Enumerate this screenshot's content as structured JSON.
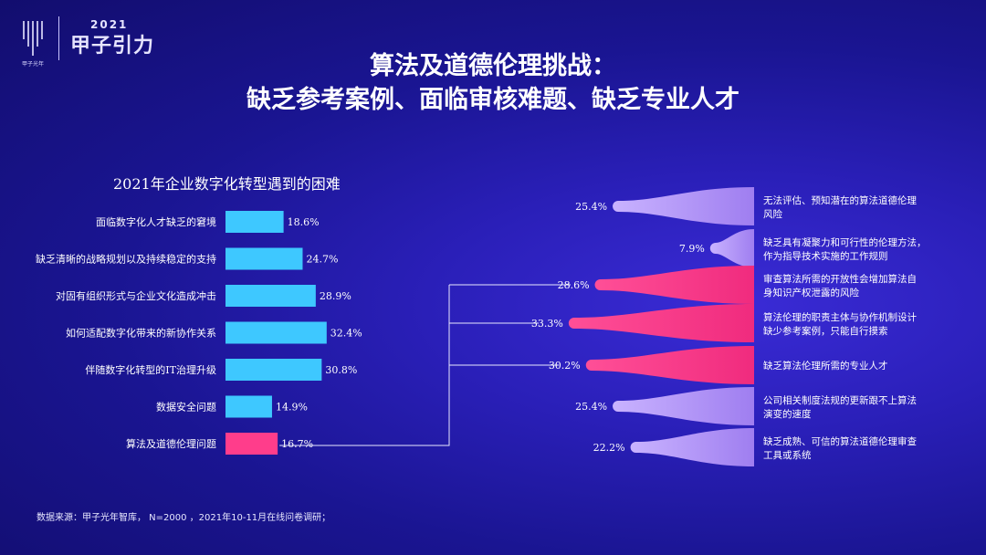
{
  "logo": {
    "year": "2021",
    "name": "甲子引力",
    "sub": "甲子光年"
  },
  "header": {
    "title_line1": "算法及道德伦理挑战：",
    "title_line2": "缺乏参考案例、面临审核难题、缺乏专业人才"
  },
  "chart_data": [
    {
      "type": "bar",
      "orientation": "horizontal",
      "title": "2021年企业数字化转型遇到的困难",
      "categories": [
        "面临数字化人才缺乏的窘境",
        "缺乏清晰的战略规划以及持续稳定的支持",
        "对固有组织形式与企业文化造成冲击",
        "如何适配数字化带来的新协作关系",
        "伴随数字化转型的IT治理升级",
        "数据安全问题",
        "算法及道德伦理问题"
      ],
      "values": [
        18.6,
        24.7,
        28.9,
        32.4,
        30.8,
        14.9,
        16.7
      ],
      "labels": [
        "18.6%",
        "24.7%",
        "28.9%",
        "32.4%",
        "30.8%",
        "14.9%",
        "16.7%"
      ],
      "highlight_index": 6,
      "colors": {
        "bar": "#3ec8ff",
        "highlight": "#ff3d8b"
      }
    },
    {
      "type": "bar",
      "orientation": "horizontal-funnel",
      "categories": [
        "无法评估、预知潜在的算法道德伦理风险",
        "缺乏具有凝聚力和可行性的伦理方法，作为指导技术实施的工作规则",
        "审查算法所需的开放性会增加算法自身知识产权泄露的风险",
        "算法伦理的职责主体与协作机制设计缺少参考案例，只能自行摸索",
        "缺乏算法伦理所需的专业人才",
        "公司相关制度法规的更新跟不上算法演变的速度",
        "缺乏成熟、可信的算法道德伦理审查工具或系统"
      ],
      "category_lines": [
        [
          "无法评估、预知潜在的算法道德伦理",
          "风险"
        ],
        [
          "缺乏具有凝聚力和可行性的伦理方法，",
          "作为指导技术实施的工作规则"
        ],
        [
          "审查算法所需的开放性会增加算法自",
          "身知识产权泄露的风险"
        ],
        [
          "算法伦理的职责主体与协作机制设计",
          "缺少参考案例，只能自行摸索"
        ],
        [
          "缺乏算法伦理所需的专业人才"
        ],
        [
          "公司相关制度法规的更新跟不上算法",
          "演变的速度"
        ],
        [
          "缺乏成熟、可信的算法道德伦理审查",
          "工具或系统"
        ]
      ],
      "values": [
        25.4,
        7.9,
        28.6,
        33.3,
        30.2,
        25.4,
        22.2
      ],
      "labels": [
        "25.4%",
        "7.9%",
        "28.6%",
        "33.3%",
        "30.2%",
        "25.4%",
        "22.2%"
      ],
      "highlight_indices": [
        2,
        3,
        4
      ],
      "colors": {
        "bar": "#b79cf2",
        "highlight": "#ff3d8b"
      }
    }
  ],
  "footer": {
    "source": "数据来源：甲子光年智库， N=2000 ，2021年10-11月在线问卷调研；"
  }
}
